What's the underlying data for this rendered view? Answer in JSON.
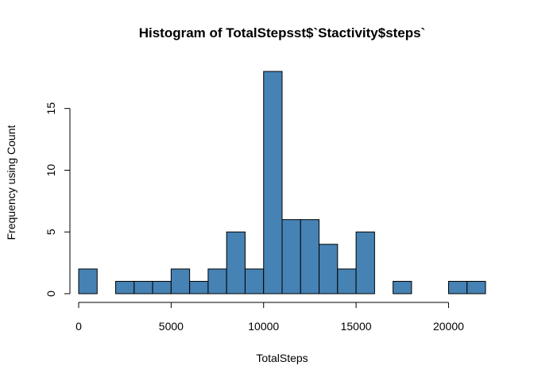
{
  "chart_data": {
    "type": "bar",
    "title": "Histogram of TotalStepsst$`Stactivity$steps`",
    "xlabel": "TotalSteps",
    "ylabel": "Frequency using Count",
    "bar_color": "#4682B4",
    "bin_width": 1000,
    "bins_start": [
      0,
      1000,
      2000,
      3000,
      4000,
      5000,
      6000,
      7000,
      8000,
      9000,
      10000,
      11000,
      12000,
      13000,
      14000,
      15000,
      16000,
      17000,
      18000,
      19000,
      20000,
      21000
    ],
    "values": [
      2,
      0,
      1,
      1,
      1,
      2,
      1,
      2,
      5,
      2,
      18,
      6,
      6,
      4,
      2,
      5,
      0,
      1,
      0,
      0,
      1,
      1
    ],
    "xlim": [
      0,
      22000
    ],
    "ylim": [
      0,
      18
    ],
    "x_ticks": [
      0,
      5000,
      10000,
      15000,
      20000
    ],
    "y_ticks": [
      0,
      5,
      10,
      15
    ],
    "grid": false
  }
}
